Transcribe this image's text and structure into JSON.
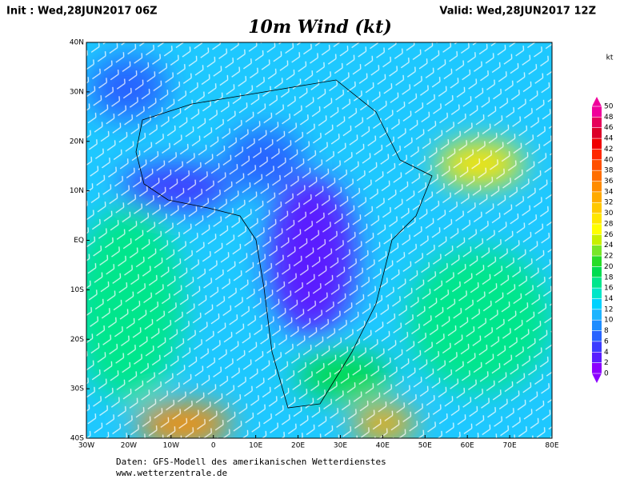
{
  "header": {
    "init": "Init : Wed,28JUN2017 06Z",
    "valid": "Valid: Wed,28JUN2017 12Z",
    "title": "10m Wind (kt)"
  },
  "map": {
    "lat_labels": [
      "40N",
      "30N",
      "20N",
      "10N",
      "EQ",
      "10S",
      "20S",
      "30S",
      "40S"
    ],
    "lon_labels": [
      "30W",
      "20W",
      "10W",
      "0",
      "10E",
      "20E",
      "30E",
      "40E",
      "50E",
      "60E",
      "70E",
      "80E"
    ]
  },
  "colorbar": {
    "unit": "kt",
    "levels": [
      0,
      2,
      4,
      6,
      8,
      10,
      12,
      14,
      16,
      18,
      20,
      22,
      24,
      26,
      28,
      30,
      32,
      34,
      36,
      38,
      40,
      42,
      44,
      46,
      48,
      50
    ],
    "colors": [
      "#8c00ff",
      "#5a1eff",
      "#3c3cff",
      "#2864ff",
      "#1e8cff",
      "#1eb4ff",
      "#00d2ff",
      "#00e6c8",
      "#00e68c",
      "#00dc50",
      "#28dc28",
      "#78e628",
      "#c8f000",
      "#ffff00",
      "#ffe600",
      "#ffc800",
      "#ffaa00",
      "#ff8c00",
      "#ff6e00",
      "#ff5000",
      "#ff2800",
      "#f00000",
      "#dc0028",
      "#e6005a",
      "#f0009b"
    ]
  },
  "footer": {
    "line1": "Daten: GFS-Modell des amerikanischen Wetterdienstes",
    "line2": "www.wetterzentrale.de"
  }
}
